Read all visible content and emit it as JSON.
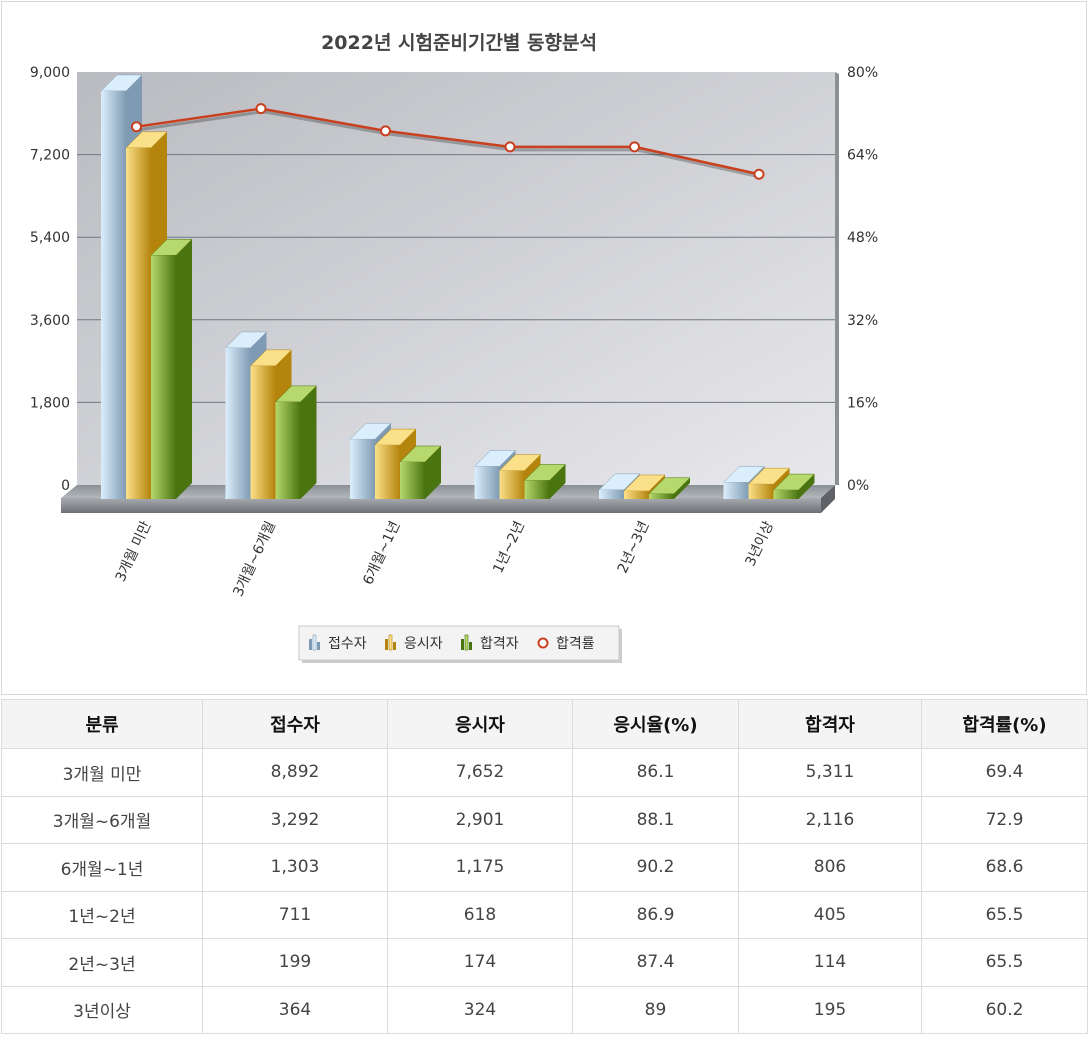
{
  "chart_data": {
    "type": "bar",
    "title": "2022년 시험준비기간별 동향분석",
    "categories": [
      "3개월 미만",
      "3개월~6개월",
      "6개월~1년",
      "1년~2년",
      "2년~3년",
      "3년이상"
    ],
    "series": [
      {
        "name": "접수자",
        "kind": "bar",
        "axis": "left",
        "values": [
          8892,
          3292,
          1303,
          711,
          199,
          364
        ]
      },
      {
        "name": "응시자",
        "kind": "bar",
        "axis": "left",
        "values": [
          7652,
          2901,
          1175,
          618,
          174,
          324
        ]
      },
      {
        "name": "합격자",
        "kind": "bar",
        "axis": "left",
        "values": [
          5311,
          2116,
          806,
          405,
          114,
          195
        ]
      },
      {
        "name": "합격률",
        "kind": "line",
        "axis": "right",
        "values": [
          69.4,
          72.9,
          68.6,
          65.5,
          65.5,
          60.2
        ]
      }
    ],
    "y_left": {
      "min": 0,
      "max": 9000,
      "ticks": [
        "0",
        "1,800",
        "3,600",
        "5,400",
        "7,200",
        "9,000"
      ]
    },
    "y_right": {
      "min": 0,
      "max": 80,
      "ticks": [
        "0%",
        "16%",
        "32%",
        "48%",
        "64%",
        "80%"
      ]
    },
    "grid": true,
    "legend_position": "bottom",
    "colors": {
      "접수자": [
        "#dbeefc",
        "#7f9bb3"
      ],
      "응시자": [
        "#fbe08a",
        "#b4840c"
      ],
      "합격자": [
        "#b6d86c",
        "#4a7410"
      ],
      "합격률": "#c8401e"
    }
  },
  "table": {
    "headers": [
      "분류",
      "접수자",
      "응시자",
      "응시율(%)",
      "합격자",
      "합격률(%)"
    ],
    "rows": [
      [
        "3개월 미만",
        "8,892",
        "7,652",
        "86.1",
        "5,311",
        "69.4"
      ],
      [
        "3개월~6개월",
        "3,292",
        "2,901",
        "88.1",
        "2,116",
        "72.9"
      ],
      [
        "6개월~1년",
        "1,303",
        "1,175",
        "90.2",
        "806",
        "68.6"
      ],
      [
        "1년~2년",
        "711",
        "618",
        "86.9",
        "405",
        "65.5"
      ],
      [
        "2년~3년",
        "199",
        "174",
        "87.4",
        "114",
        "65.5"
      ],
      [
        "3년이상",
        "364",
        "324",
        "89",
        "195",
        "60.2"
      ]
    ]
  }
}
